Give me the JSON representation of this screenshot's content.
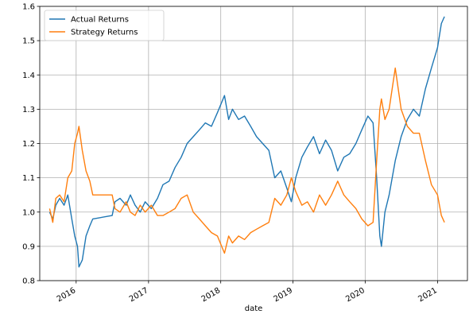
{
  "chart_data": {
    "type": "line",
    "title": "",
    "xlabel": "date",
    "ylabel": "",
    "x_type": "date",
    "xlim": [
      "2015-07-01",
      "2021-06-01"
    ],
    "ylim": [
      0.8,
      1.6
    ],
    "grid": true,
    "legend_position": "top-left",
    "x_ticks": [
      "2016",
      "2017",
      "2018",
      "2019",
      "2020",
      "2021"
    ],
    "x_tick_dates": [
      "2016-01-01",
      "2017-01-01",
      "2018-01-01",
      "2019-01-01",
      "2020-01-01",
      "2021-01-01"
    ],
    "y_ticks": [
      "0.8",
      "0.9",
      "1.0",
      "1.1",
      "1.2",
      "1.3",
      "1.4",
      "1.5",
      "1.6"
    ],
    "y_tick_values": [
      0.8,
      0.9,
      1.0,
      1.1,
      1.2,
      1.3,
      1.4,
      1.5,
      1.6
    ],
    "series": [
      {
        "name": "Actual Returns",
        "color": "#1f77b4",
        "points": [
          [
            "2015-08-20",
            1.0
          ],
          [
            "2015-09-05",
            0.98
          ],
          [
            "2015-09-20",
            1.02
          ],
          [
            "2015-10-10",
            1.04
          ],
          [
            "2015-11-01",
            1.02
          ],
          [
            "2015-11-20",
            1.05
          ],
          [
            "2015-12-10",
            0.98
          ],
          [
            "2015-12-25",
            0.93
          ],
          [
            "2016-01-08",
            0.9
          ],
          [
            "2016-01-15",
            0.84
          ],
          [
            "2016-02-01",
            0.86
          ],
          [
            "2016-02-20",
            0.93
          ],
          [
            "2016-03-10",
            0.96
          ],
          [
            "2016-03-25",
            0.98
          ],
          [
            "2016-07-01",
            0.99
          ],
          [
            "2016-07-15",
            1.03
          ],
          [
            "2016-08-10",
            1.04
          ],
          [
            "2016-09-10",
            1.02
          ],
          [
            "2016-10-01",
            1.05
          ],
          [
            "2016-10-25",
            1.02
          ],
          [
            "2016-11-20",
            1.0
          ],
          [
            "2016-12-15",
            1.03
          ],
          [
            "2017-01-15",
            1.01
          ],
          [
            "2017-02-15",
            1.04
          ],
          [
            "2017-03-15",
            1.08
          ],
          [
            "2017-04-15",
            1.09
          ],
          [
            "2017-05-15",
            1.13
          ],
          [
            "2017-06-15",
            1.16
          ],
          [
            "2017-07-15",
            1.2
          ],
          [
            "2017-08-15",
            1.22
          ],
          [
            "2017-09-15",
            1.24
          ],
          [
            "2017-10-15",
            1.26
          ],
          [
            "2017-11-15",
            1.25
          ],
          [
            "2017-12-15",
            1.29
          ],
          [
            "2018-01-20",
            1.34
          ],
          [
            "2018-02-10",
            1.27
          ],
          [
            "2018-03-01",
            1.3
          ],
          [
            "2018-04-01",
            1.27
          ],
          [
            "2018-05-01",
            1.28
          ],
          [
            "2018-06-01",
            1.25
          ],
          [
            "2018-07-01",
            1.22
          ],
          [
            "2018-08-01",
            1.2
          ],
          [
            "2018-09-01",
            1.18
          ],
          [
            "2018-10-01",
            1.1
          ],
          [
            "2018-11-01",
            1.12
          ],
          [
            "2018-12-01",
            1.07
          ],
          [
            "2018-12-24",
            1.03
          ],
          [
            "2019-01-15",
            1.1
          ],
          [
            "2019-02-15",
            1.16
          ],
          [
            "2019-03-15",
            1.19
          ],
          [
            "2019-04-15",
            1.22
          ],
          [
            "2019-05-15",
            1.17
          ],
          [
            "2019-06-15",
            1.21
          ],
          [
            "2019-07-15",
            1.18
          ],
          [
            "2019-08-15",
            1.12
          ],
          [
            "2019-09-15",
            1.16
          ],
          [
            "2019-10-15",
            1.17
          ],
          [
            "2019-11-15",
            1.2
          ],
          [
            "2019-12-15",
            1.24
          ],
          [
            "2020-01-15",
            1.28
          ],
          [
            "2020-02-10",
            1.26
          ],
          [
            "2020-02-28",
            1.1
          ],
          [
            "2020-03-15",
            0.93
          ],
          [
            "2020-03-23",
            0.9
          ],
          [
            "2020-04-10",
            1.0
          ],
          [
            "2020-05-01",
            1.05
          ],
          [
            "2020-06-01",
            1.15
          ],
          [
            "2020-07-01",
            1.22
          ],
          [
            "2020-08-01",
            1.27
          ],
          [
            "2020-09-01",
            1.3
          ],
          [
            "2020-10-01",
            1.28
          ],
          [
            "2020-11-01",
            1.36
          ],
          [
            "2020-12-01",
            1.42
          ],
          [
            "2021-01-01",
            1.48
          ],
          [
            "2021-01-20",
            1.55
          ],
          [
            "2021-02-05",
            1.57
          ]
        ]
      },
      {
        "name": "Strategy Returns",
        "color": "#ff7f0e",
        "points": [
          [
            "2015-08-20",
            1.01
          ],
          [
            "2015-09-05",
            0.97
          ],
          [
            "2015-09-20",
            1.04
          ],
          [
            "2015-10-10",
            1.05
          ],
          [
            "2015-11-01",
            1.03
          ],
          [
            "2015-11-20",
            1.1
          ],
          [
            "2015-12-10",
            1.12
          ],
          [
            "2015-12-25",
            1.2
          ],
          [
            "2016-01-08",
            1.23
          ],
          [
            "2016-01-15",
            1.25
          ],
          [
            "2016-02-01",
            1.18
          ],
          [
            "2016-02-20",
            1.12
          ],
          [
            "2016-03-10",
            1.09
          ],
          [
            "2016-03-25",
            1.05
          ],
          [
            "2016-07-01",
            1.05
          ],
          [
            "2016-07-15",
            1.01
          ],
          [
            "2016-08-10",
            1.0
          ],
          [
            "2016-09-10",
            1.03
          ],
          [
            "2016-10-01",
            1.0
          ],
          [
            "2016-10-25",
            0.99
          ],
          [
            "2016-11-20",
            1.02
          ],
          [
            "2016-12-15",
            1.0
          ],
          [
            "2017-01-15",
            1.02
          ],
          [
            "2017-02-15",
            0.99
          ],
          [
            "2017-03-15",
            0.99
          ],
          [
            "2017-04-15",
            1.0
          ],
          [
            "2017-05-15",
            1.01
          ],
          [
            "2017-06-15",
            1.04
          ],
          [
            "2017-07-15",
            1.05
          ],
          [
            "2017-08-15",
            1.0
          ],
          [
            "2017-09-15",
            0.98
          ],
          [
            "2017-10-15",
            0.96
          ],
          [
            "2017-11-15",
            0.94
          ],
          [
            "2017-12-15",
            0.93
          ],
          [
            "2018-01-20",
            0.88
          ],
          [
            "2018-02-10",
            0.93
          ],
          [
            "2018-03-01",
            0.91
          ],
          [
            "2018-04-01",
            0.93
          ],
          [
            "2018-05-01",
            0.92
          ],
          [
            "2018-06-01",
            0.94
          ],
          [
            "2018-07-01",
            0.95
          ],
          [
            "2018-08-01",
            0.96
          ],
          [
            "2018-09-01",
            0.97
          ],
          [
            "2018-10-01",
            1.04
          ],
          [
            "2018-11-01",
            1.02
          ],
          [
            "2018-12-01",
            1.05
          ],
          [
            "2018-12-24",
            1.1
          ],
          [
            "2019-01-15",
            1.06
          ],
          [
            "2019-02-15",
            1.02
          ],
          [
            "2019-03-15",
            1.03
          ],
          [
            "2019-04-15",
            1.0
          ],
          [
            "2019-05-15",
            1.05
          ],
          [
            "2019-06-15",
            1.02
          ],
          [
            "2019-07-15",
            1.05
          ],
          [
            "2019-08-15",
            1.09
          ],
          [
            "2019-09-15",
            1.05
          ],
          [
            "2019-10-15",
            1.03
          ],
          [
            "2019-11-15",
            1.01
          ],
          [
            "2019-12-15",
            0.98
          ],
          [
            "2020-01-15",
            0.96
          ],
          [
            "2020-02-10",
            0.97
          ],
          [
            "2020-02-28",
            1.15
          ],
          [
            "2020-03-15",
            1.3
          ],
          [
            "2020-03-23",
            1.33
          ],
          [
            "2020-04-10",
            1.27
          ],
          [
            "2020-05-01",
            1.3
          ],
          [
            "2020-06-01",
            1.42
          ],
          [
            "2020-07-01",
            1.3
          ],
          [
            "2020-08-01",
            1.25
          ],
          [
            "2020-09-01",
            1.23
          ],
          [
            "2020-10-01",
            1.23
          ],
          [
            "2020-11-01",
            1.15
          ],
          [
            "2020-12-01",
            1.08
          ],
          [
            "2021-01-01",
            1.05
          ],
          [
            "2021-01-20",
            0.99
          ],
          [
            "2021-02-05",
            0.97
          ]
        ]
      }
    ]
  }
}
